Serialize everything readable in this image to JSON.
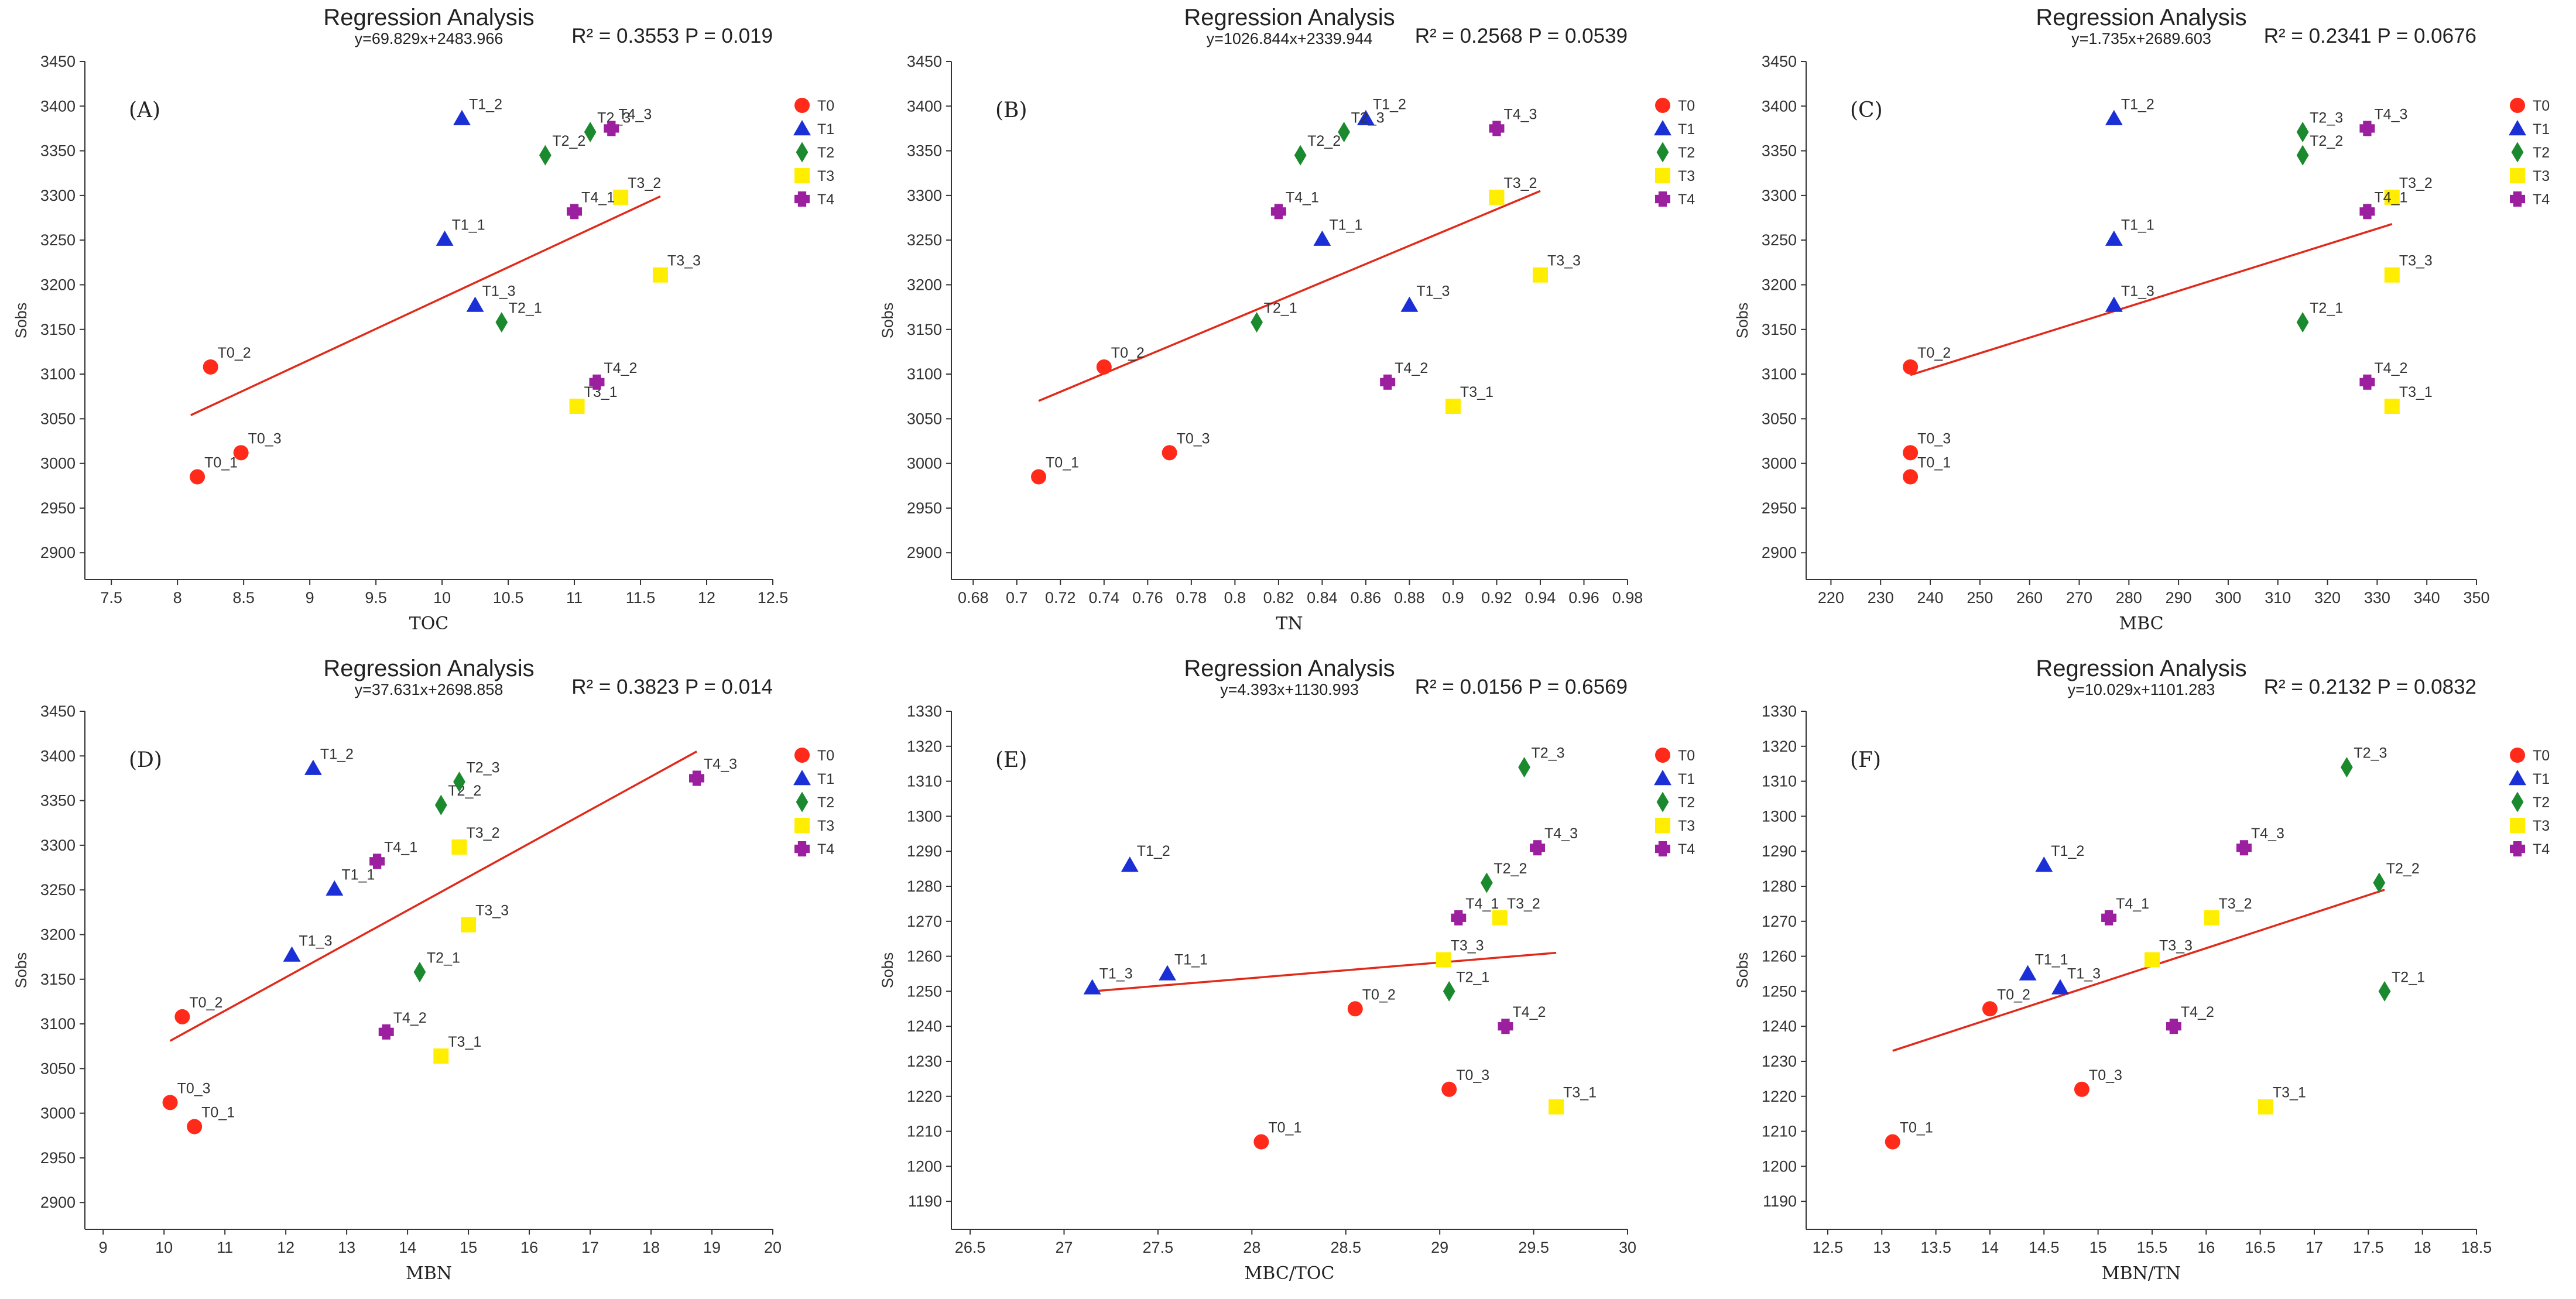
{
  "colors": {
    "T0": "#ff2a1a",
    "T1": "#1a2fd6",
    "T2": "#1b8a2e",
    "T3": "#ffee00",
    "T4": "#9b1f9f",
    "fit_line": "#e02a1a"
  },
  "legend": [
    {
      "group": "T0",
      "shape": "circle"
    },
    {
      "group": "T1",
      "shape": "triangle"
    },
    {
      "group": "T2",
      "shape": "diamond"
    },
    {
      "group": "T3",
      "shape": "square"
    },
    {
      "group": "T4",
      "shape": "cross"
    }
  ],
  "chart_data": [
    {
      "type": "scatter",
      "panel": "(A)",
      "title": "Regression Analysis",
      "equation": "y=69.829x+2483.966",
      "stats": "R² = 0.3553  P = 0.019",
      "xlabel": "TOC",
      "ylabel": "Sobs",
      "xlim": [
        7.3,
        12.5
      ],
      "ylim": [
        2870,
        3450
      ],
      "xticks": [
        7.5,
        8,
        8.5,
        9,
        9.5,
        10,
        10.5,
        11,
        11.5,
        12,
        12.5
      ],
      "xtick_labels": [
        "7.5",
        "8",
        "8.5",
        "9",
        "9.5",
        "10",
        "10.5",
        "11",
        "11.5",
        "12",
        "12.5"
      ],
      "yticks": [
        2900,
        2950,
        3000,
        3050,
        3100,
        3150,
        3200,
        3250,
        3300,
        3350,
        3400,
        3450
      ],
      "ytick_labels": [
        "2900",
        "2950",
        "3000",
        "3050",
        "3100",
        "3150",
        "3200",
        "3250",
        "3300",
        "3350",
        "3400",
        "3450"
      ],
      "fit": {
        "x": [
          8.1,
          11.65
        ],
        "y": [
          3054,
          3299
        ]
      },
      "points": [
        {
          "label": "T0_1",
          "group": "T0",
          "x": 8.15,
          "y": 2985
        },
        {
          "label": "T0_2",
          "group": "T0",
          "x": 8.25,
          "y": 3108
        },
        {
          "label": "T0_3",
          "group": "T0",
          "x": 8.48,
          "y": 3012
        },
        {
          "label": "T1_1",
          "group": "T1",
          "x": 10.02,
          "y": 3251
        },
        {
          "label": "T1_2",
          "group": "T1",
          "x": 10.15,
          "y": 3386
        },
        {
          "label": "T1_3",
          "group": "T1",
          "x": 10.25,
          "y": 3177
        },
        {
          "label": "T2_1",
          "group": "T2",
          "x": 10.45,
          "y": 3158
        },
        {
          "label": "T2_2",
          "group": "T2",
          "x": 10.78,
          "y": 3345
        },
        {
          "label": "T2_3",
          "group": "T2",
          "x": 11.12,
          "y": 3371
        },
        {
          "label": "T3_1",
          "group": "T3",
          "x": 11.02,
          "y": 3064
        },
        {
          "label": "T3_2",
          "group": "T3",
          "x": 11.35,
          "y": 3298
        },
        {
          "label": "T3_3",
          "group": "T3",
          "x": 11.65,
          "y": 3211
        },
        {
          "label": "T4_1",
          "group": "T4",
          "x": 11.0,
          "y": 3282
        },
        {
          "label": "T4_2",
          "group": "T4",
          "x": 11.17,
          "y": 3091
        },
        {
          "label": "T4_3",
          "group": "T4",
          "x": 11.28,
          "y": 3375
        }
      ]
    },
    {
      "type": "scatter",
      "panel": "(B)",
      "title": "Regression Analysis",
      "equation": "y=1026.844x+2339.944",
      "stats": "R² = 0.2568  P = 0.0539",
      "xlabel": "TN",
      "ylabel": "Sobs",
      "xlim": [
        0.67,
        0.98
      ],
      "ylim": [
        2870,
        3450
      ],
      "xticks": [
        0.68,
        0.7,
        0.72,
        0.74,
        0.76,
        0.78,
        0.8,
        0.82,
        0.84,
        0.86,
        0.88,
        0.9,
        0.92,
        0.94,
        0.96,
        0.98
      ],
      "xtick_labels": [
        "0.68",
        "0.7",
        "0.72",
        "0.74",
        "0.76",
        "0.78",
        "0.8",
        "0.82",
        "0.84",
        "0.86",
        "0.88",
        "0.9",
        "0.92",
        "0.94",
        "0.96",
        "0.98"
      ],
      "yticks": [
        2900,
        2950,
        3000,
        3050,
        3100,
        3150,
        3200,
        3250,
        3300,
        3350,
        3400,
        3450
      ],
      "ytick_labels": [
        "2900",
        "2950",
        "3000",
        "3050",
        "3100",
        "3150",
        "3200",
        "3250",
        "3300",
        "3350",
        "3400",
        "3450"
      ],
      "fit": {
        "x": [
          0.71,
          0.94
        ],
        "y": [
          3070,
          3305
        ]
      },
      "points": [
        {
          "label": "T0_1",
          "group": "T0",
          "x": 0.71,
          "y": 2985
        },
        {
          "label": "T0_2",
          "group": "T0",
          "x": 0.74,
          "y": 3108
        },
        {
          "label": "T0_3",
          "group": "T0",
          "x": 0.77,
          "y": 3012
        },
        {
          "label": "T1_1",
          "group": "T1",
          "x": 0.84,
          "y": 3251
        },
        {
          "label": "T1_2",
          "group": "T1",
          "x": 0.86,
          "y": 3386
        },
        {
          "label": "T1_3",
          "group": "T1",
          "x": 0.88,
          "y": 3177
        },
        {
          "label": "T2_1",
          "group": "T2",
          "x": 0.81,
          "y": 3158
        },
        {
          "label": "T2_2",
          "group": "T2",
          "x": 0.83,
          "y": 3345
        },
        {
          "label": "T2_3",
          "group": "T2",
          "x": 0.85,
          "y": 3371
        },
        {
          "label": "T3_1",
          "group": "T3",
          "x": 0.9,
          "y": 3064
        },
        {
          "label": "T3_2",
          "group": "T3",
          "x": 0.92,
          "y": 3298
        },
        {
          "label": "T3_3",
          "group": "T3",
          "x": 0.94,
          "y": 3211
        },
        {
          "label": "T4_1",
          "group": "T4",
          "x": 0.82,
          "y": 3282
        },
        {
          "label": "T4_2",
          "group": "T4",
          "x": 0.87,
          "y": 3091
        },
        {
          "label": "T4_3",
          "group": "T4",
          "x": 0.92,
          "y": 3375
        }
      ]
    },
    {
      "type": "scatter",
      "panel": "(C)",
      "title": "Regression Analysis",
      "equation": "y=1.735x+2689.603",
      "stats": "R² = 0.2341  P = 0.0676",
      "xlabel": "MBC",
      "ylabel": "Sobs",
      "xlim": [
        215,
        350
      ],
      "ylim": [
        2870,
        3450
      ],
      "xticks": [
        220,
        230,
        240,
        250,
        260,
        270,
        280,
        290,
        300,
        310,
        320,
        330,
        340,
        350
      ],
      "xtick_labels": [
        "220",
        "230",
        "240",
        "250",
        "260",
        "270",
        "280",
        "290",
        "300",
        "310",
        "320",
        "330",
        "340",
        "350"
      ],
      "yticks": [
        2900,
        2950,
        3000,
        3050,
        3100,
        3150,
        3200,
        3250,
        3300,
        3350,
        3400,
        3450
      ],
      "ytick_labels": [
        "2900",
        "2950",
        "3000",
        "3050",
        "3100",
        "3150",
        "3200",
        "3250",
        "3300",
        "3350",
        "3400",
        "3450"
      ],
      "fit": {
        "x": [
          236,
          333
        ],
        "y": [
          3099,
          3268
        ]
      },
      "points": [
        {
          "label": "T0_1",
          "group": "T0",
          "x": 236,
          "y": 2985
        },
        {
          "label": "T0_2",
          "group": "T0",
          "x": 236,
          "y": 3108
        },
        {
          "label": "T0_3",
          "group": "T0",
          "x": 236,
          "y": 3012
        },
        {
          "label": "T1_1",
          "group": "T1",
          "x": 277,
          "y": 3251
        },
        {
          "label": "T1_2",
          "group": "T1",
          "x": 277,
          "y": 3386
        },
        {
          "label": "T1_3",
          "group": "T1",
          "x": 277,
          "y": 3177
        },
        {
          "label": "T2_1",
          "group": "T2",
          "x": 315,
          "y": 3158
        },
        {
          "label": "T2_2",
          "group": "T2",
          "x": 315,
          "y": 3345
        },
        {
          "label": "T2_3",
          "group": "T2",
          "x": 315,
          "y": 3371
        },
        {
          "label": "T3_1",
          "group": "T3",
          "x": 333,
          "y": 3064
        },
        {
          "label": "T3_2",
          "group": "T3",
          "x": 333,
          "y": 3298
        },
        {
          "label": "T3_3",
          "group": "T3",
          "x": 333,
          "y": 3211
        },
        {
          "label": "T4_1",
          "group": "T4",
          "x": 328,
          "y": 3282
        },
        {
          "label": "T4_2",
          "group": "T4",
          "x": 328,
          "y": 3091
        },
        {
          "label": "T4_3",
          "group": "T4",
          "x": 328,
          "y": 3375
        }
      ]
    },
    {
      "type": "scatter",
      "panel": "(D)",
      "title": "Regression Analysis",
      "equation": "y=37.631x+2698.858",
      "stats": "R² = 0.3823  P = 0.014",
      "xlabel": "MBN",
      "ylabel": "Sobs",
      "xlim": [
        8.7,
        20
      ],
      "ylim": [
        2870,
        3450
      ],
      "xticks": [
        9,
        10,
        11,
        12,
        13,
        14,
        15,
        16,
        17,
        18,
        19,
        20
      ],
      "xtick_labels": [
        "9",
        "10",
        "11",
        "12",
        "13",
        "14",
        "15",
        "16",
        "17",
        "18",
        "19",
        "20"
      ],
      "yticks": [
        2900,
        2950,
        3000,
        3050,
        3100,
        3150,
        3200,
        3250,
        3300,
        3350,
        3400,
        3450
      ],
      "ytick_labels": [
        "2900",
        "2950",
        "3000",
        "3050",
        "3100",
        "3150",
        "3200",
        "3250",
        "3300",
        "3350",
        "3400",
        "3450"
      ],
      "fit": {
        "x": [
          10.1,
          18.75
        ],
        "y": [
          3081,
          3405
        ]
      },
      "points": [
        {
          "label": "T0_1",
          "group": "T0",
          "x": 10.5,
          "y": 2985
        },
        {
          "label": "T0_2",
          "group": "T0",
          "x": 10.3,
          "y": 3108
        },
        {
          "label": "T0_3",
          "group": "T0",
          "x": 10.1,
          "y": 3012
        },
        {
          "label": "T1_1",
          "group": "T1",
          "x": 12.8,
          "y": 3251
        },
        {
          "label": "T1_2",
          "group": "T1",
          "x": 12.45,
          "y": 3386
        },
        {
          "label": "T1_3",
          "group": "T1",
          "x": 12.1,
          "y": 3177
        },
        {
          "label": "T2_1",
          "group": "T2",
          "x": 14.2,
          "y": 3158
        },
        {
          "label": "T2_2",
          "group": "T2",
          "x": 14.55,
          "y": 3345
        },
        {
          "label": "T2_3",
          "group": "T2",
          "x": 14.85,
          "y": 3371
        },
        {
          "label": "T3_1",
          "group": "T3",
          "x": 14.55,
          "y": 3064
        },
        {
          "label": "T3_2",
          "group": "T3",
          "x": 14.85,
          "y": 3298
        },
        {
          "label": "T3_3",
          "group": "T3",
          "x": 15.0,
          "y": 3211
        },
        {
          "label": "T4_1",
          "group": "T4",
          "x": 13.5,
          "y": 3282
        },
        {
          "label": "T4_2",
          "group": "T4",
          "x": 13.65,
          "y": 3091
        },
        {
          "label": "T4_3",
          "group": "T4",
          "x": 18.75,
          "y": 3375
        }
      ]
    },
    {
      "type": "scatter",
      "panel": "(E)",
      "title": "Regression Analysis",
      "equation": "y=4.393x+1130.993",
      "stats": "R² = 0.0156  P = 0.6569",
      "xlabel": "MBC/TOC",
      "ylabel": "Sobs",
      "xlim": [
        26.4,
        30
      ],
      "ylim": [
        1182,
        1330
      ],
      "xticks": [
        26.5,
        27,
        27.5,
        28,
        28.5,
        29,
        29.5,
        30
      ],
      "xtick_labels": [
        "26.5",
        "27",
        "27.5",
        "28",
        "28.5",
        "29",
        "29.5",
        "30"
      ],
      "yticks": [
        1190,
        1200,
        1210,
        1220,
        1230,
        1240,
        1250,
        1260,
        1270,
        1280,
        1290,
        1300,
        1310,
        1320,
        1330
      ],
      "ytick_labels": [
        "1190",
        "1200",
        "1210",
        "1220",
        "1230",
        "1240",
        "1250",
        "1260",
        "1270",
        "1280",
        "1290",
        "1300",
        "1310",
        "1320",
        "1330"
      ],
      "fit": {
        "x": [
          27.15,
          29.62
        ],
        "y": [
          1250,
          1261
        ]
      },
      "points": [
        {
          "label": "T0_1",
          "group": "T0",
          "x": 28.05,
          "y": 1207
        },
        {
          "label": "T0_2",
          "group": "T0",
          "x": 28.55,
          "y": 1245
        },
        {
          "label": "T0_3",
          "group": "T0",
          "x": 29.05,
          "y": 1222
        },
        {
          "label": "T1_1",
          "group": "T1",
          "x": 27.55,
          "y": 1255
        },
        {
          "label": "T1_2",
          "group": "T1",
          "x": 27.35,
          "y": 1286
        },
        {
          "label": "T1_3",
          "group": "T1",
          "x": 27.15,
          "y": 1251
        },
        {
          "label": "T2_1",
          "group": "T2",
          "x": 29.05,
          "y": 1250
        },
        {
          "label": "T2_2",
          "group": "T2",
          "x": 29.25,
          "y": 1281
        },
        {
          "label": "T2_3",
          "group": "T2",
          "x": 29.45,
          "y": 1314
        },
        {
          "label": "T3_1",
          "group": "T3",
          "x": 29.62,
          "y": 1217
        },
        {
          "label": "T3_2",
          "group": "T3",
          "x": 29.32,
          "y": 1271
        },
        {
          "label": "T3_3",
          "group": "T3",
          "x": 29.02,
          "y": 1259
        },
        {
          "label": "T4_1",
          "group": "T4",
          "x": 29.1,
          "y": 1271
        },
        {
          "label": "T4_2",
          "group": "T4",
          "x": 29.35,
          "y": 1240
        },
        {
          "label": "T4_3",
          "group": "T4",
          "x": 29.52,
          "y": 1291
        }
      ]
    },
    {
      "type": "scatter",
      "panel": "(F)",
      "title": "Regression Analysis",
      "equation": "y=10.029x+1101.283",
      "stats": "R² = 0.2132  P = 0.0832",
      "xlabel": "MBN/TN",
      "ylabel": "Sobs",
      "xlim": [
        12.3,
        18.5
      ],
      "ylim": [
        1182,
        1330
      ],
      "xticks": [
        12.5,
        13,
        13.5,
        14,
        14.5,
        15,
        15.5,
        16,
        16.5,
        17,
        17.5,
        18,
        18.5
      ],
      "xtick_labels": [
        "12.5",
        "13",
        "13.5",
        "14",
        "14.5",
        "15",
        "15.5",
        "16",
        "16.5",
        "17",
        "17.5",
        "18",
        "18.5"
      ],
      "yticks": [
        1190,
        1200,
        1210,
        1220,
        1230,
        1240,
        1250,
        1260,
        1270,
        1280,
        1290,
        1300,
        1310,
        1320,
        1330
      ],
      "ytick_labels": [
        "1190",
        "1200",
        "1210",
        "1220",
        "1230",
        "1240",
        "1250",
        "1260",
        "1270",
        "1280",
        "1290",
        "1300",
        "1310",
        "1320",
        "1330"
      ],
      "fit": {
        "x": [
          13.1,
          17.65
        ],
        "y": [
          1233,
          1279
        ]
      },
      "points": [
        {
          "label": "T0_1",
          "group": "T0",
          "x": 13.1,
          "y": 1207
        },
        {
          "label": "T0_2",
          "group": "T0",
          "x": 14.0,
          "y": 1245
        },
        {
          "label": "T0_3",
          "group": "T0",
          "x": 14.85,
          "y": 1222
        },
        {
          "label": "T1_1",
          "group": "T1",
          "x": 14.35,
          "y": 1255
        },
        {
          "label": "T1_2",
          "group": "T1",
          "x": 14.5,
          "y": 1286
        },
        {
          "label": "T1_3",
          "group": "T1",
          "x": 14.65,
          "y": 1251
        },
        {
          "label": "T2_1",
          "group": "T2",
          "x": 17.65,
          "y": 1250
        },
        {
          "label": "T2_2",
          "group": "T2",
          "x": 17.6,
          "y": 1281
        },
        {
          "label": "T2_3",
          "group": "T2",
          "x": 17.3,
          "y": 1314
        },
        {
          "label": "T3_1",
          "group": "T3",
          "x": 16.55,
          "y": 1217
        },
        {
          "label": "T3_2",
          "group": "T3",
          "x": 16.05,
          "y": 1271
        },
        {
          "label": "T3_3",
          "group": "T3",
          "x": 15.5,
          "y": 1259
        },
        {
          "label": "T4_1",
          "group": "T4",
          "x": 15.1,
          "y": 1271
        },
        {
          "label": "T4_2",
          "group": "T4",
          "x": 15.7,
          "y": 1240
        },
        {
          "label": "T4_3",
          "group": "T4",
          "x": 16.35,
          "y": 1291
        }
      ]
    }
  ]
}
